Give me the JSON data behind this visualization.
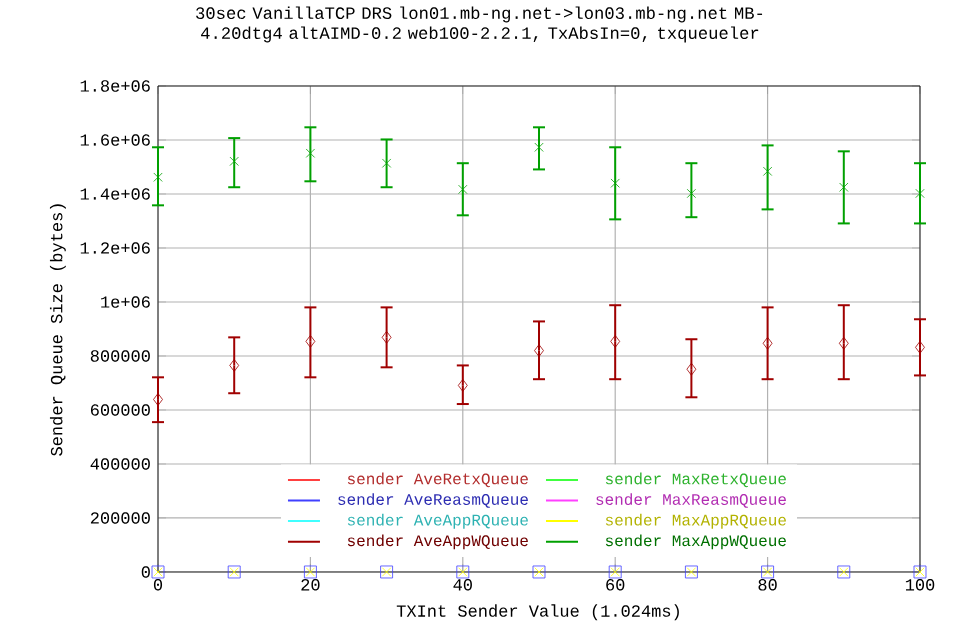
{
  "chart_data": {
    "type": "scatter",
    "title": "30sec VanillaTCP DRS lon01.mb-ng.net->lon03.mb-ng.net MB-4.20dtg4 altAIMD-0.2 web100-2.2.1, TxAbsIn=0, txqueueler",
    "xlabel": "TXInt Sender Value (1.024ms)",
    "ylabel": "Sender Queue Size (bytes)",
    "x": [
      0,
      10,
      20,
      30,
      40,
      50,
      60,
      70,
      80,
      90,
      100
    ],
    "series": [
      {
        "name": "sender AveRetxQueue",
        "color": "#ff4040",
        "marker": "diamond",
        "values": [
          null,
          null,
          null,
          null,
          null,
          null,
          null,
          null,
          null,
          null,
          null
        ]
      },
      {
        "name": "sender MaxRetxQueue",
        "color": "#40ff40",
        "marker": "none",
        "values": [
          null,
          null,
          null,
          null,
          null,
          null,
          null,
          null,
          null,
          null,
          null
        ]
      },
      {
        "name": "sender AveReasmQueue",
        "color": "#4040ff",
        "marker": "square",
        "values": [
          0,
          0,
          0,
          0,
          0,
          0,
          0,
          0,
          0,
          0,
          0
        ]
      },
      {
        "name": "sender MaxReasmQueue",
        "color": "#ff40ff",
        "marker": "cross",
        "values": [
          null,
          null,
          null,
          null,
          null,
          null,
          null,
          null,
          null,
          null,
          null
        ]
      },
      {
        "name": "sender AveAppRQueue",
        "color": "#40ffff",
        "marker": "triangle",
        "values": [
          null,
          null,
          null,
          null,
          null,
          null,
          null,
          null,
          null,
          null,
          null
        ]
      },
      {
        "name": "sender MaxAppRQueue",
        "color": "#ffff00",
        "marker": "cross",
        "values": [
          0,
          0,
          0,
          0,
          0,
          0,
          0,
          0,
          0,
          0,
          0
        ]
      },
      {
        "name": "sender AveAppWQueue",
        "color": "#a00000",
        "marker": "diamond",
        "values": [
          639000,
          765000,
          854000,
          869000,
          691000,
          820000,
          854000,
          751000,
          847000,
          847000,
          832000
        ],
        "errors": [
          [
            555000,
            721000
          ],
          [
            662000,
            869000
          ],
          [
            721000,
            980000
          ],
          [
            758000,
            980000
          ],
          [
            622000,
            765000
          ],
          [
            714000,
            928000
          ],
          [
            714000,
            988000
          ],
          [
            647000,
            862000
          ],
          [
            714000,
            980000
          ],
          [
            714000,
            988000
          ],
          [
            728000,
            936000
          ]
        ]
      },
      {
        "name": "sender MaxAppWQueue",
        "color": "#00a000",
        "marker": "cross",
        "values": [
          1462000,
          1521000,
          1551000,
          1514000,
          1417000,
          1573000,
          1440000,
          1402000,
          1484000,
          1425000,
          1402000
        ],
        "errors": [
          [
            1358000,
            1573000
          ],
          [
            1425000,
            1607000
          ],
          [
            1447000,
            1647000
          ],
          [
            1425000,
            1602000
          ],
          [
            1321000,
            1514000
          ],
          [
            1491000,
            1647000
          ],
          [
            1306000,
            1573000
          ],
          [
            1314000,
            1514000
          ],
          [
            1343000,
            1580000
          ],
          [
            1291000,
            1558000
          ],
          [
            1291000,
            1514000
          ]
        ]
      }
    ],
    "xlim": [
      0,
      100
    ],
    "ylim": [
      0,
      1800000
    ],
    "xticks": [
      0,
      20,
      40,
      60,
      80,
      100
    ],
    "yticks": [
      0,
      200000,
      400000,
      600000,
      800000,
      {
        "value": 1000000,
        "label": "1e+06"
      },
      {
        "value": 1200000,
        "label": "1.2e+06"
      },
      {
        "value": 1400000,
        "label": "1.4e+06"
      },
      {
        "value": 1600000,
        "label": "1.6e+06"
      },
      {
        "value": 1800000,
        "label": "1.8e+06"
      }
    ],
    "grid": true,
    "legend": "bottom"
  }
}
